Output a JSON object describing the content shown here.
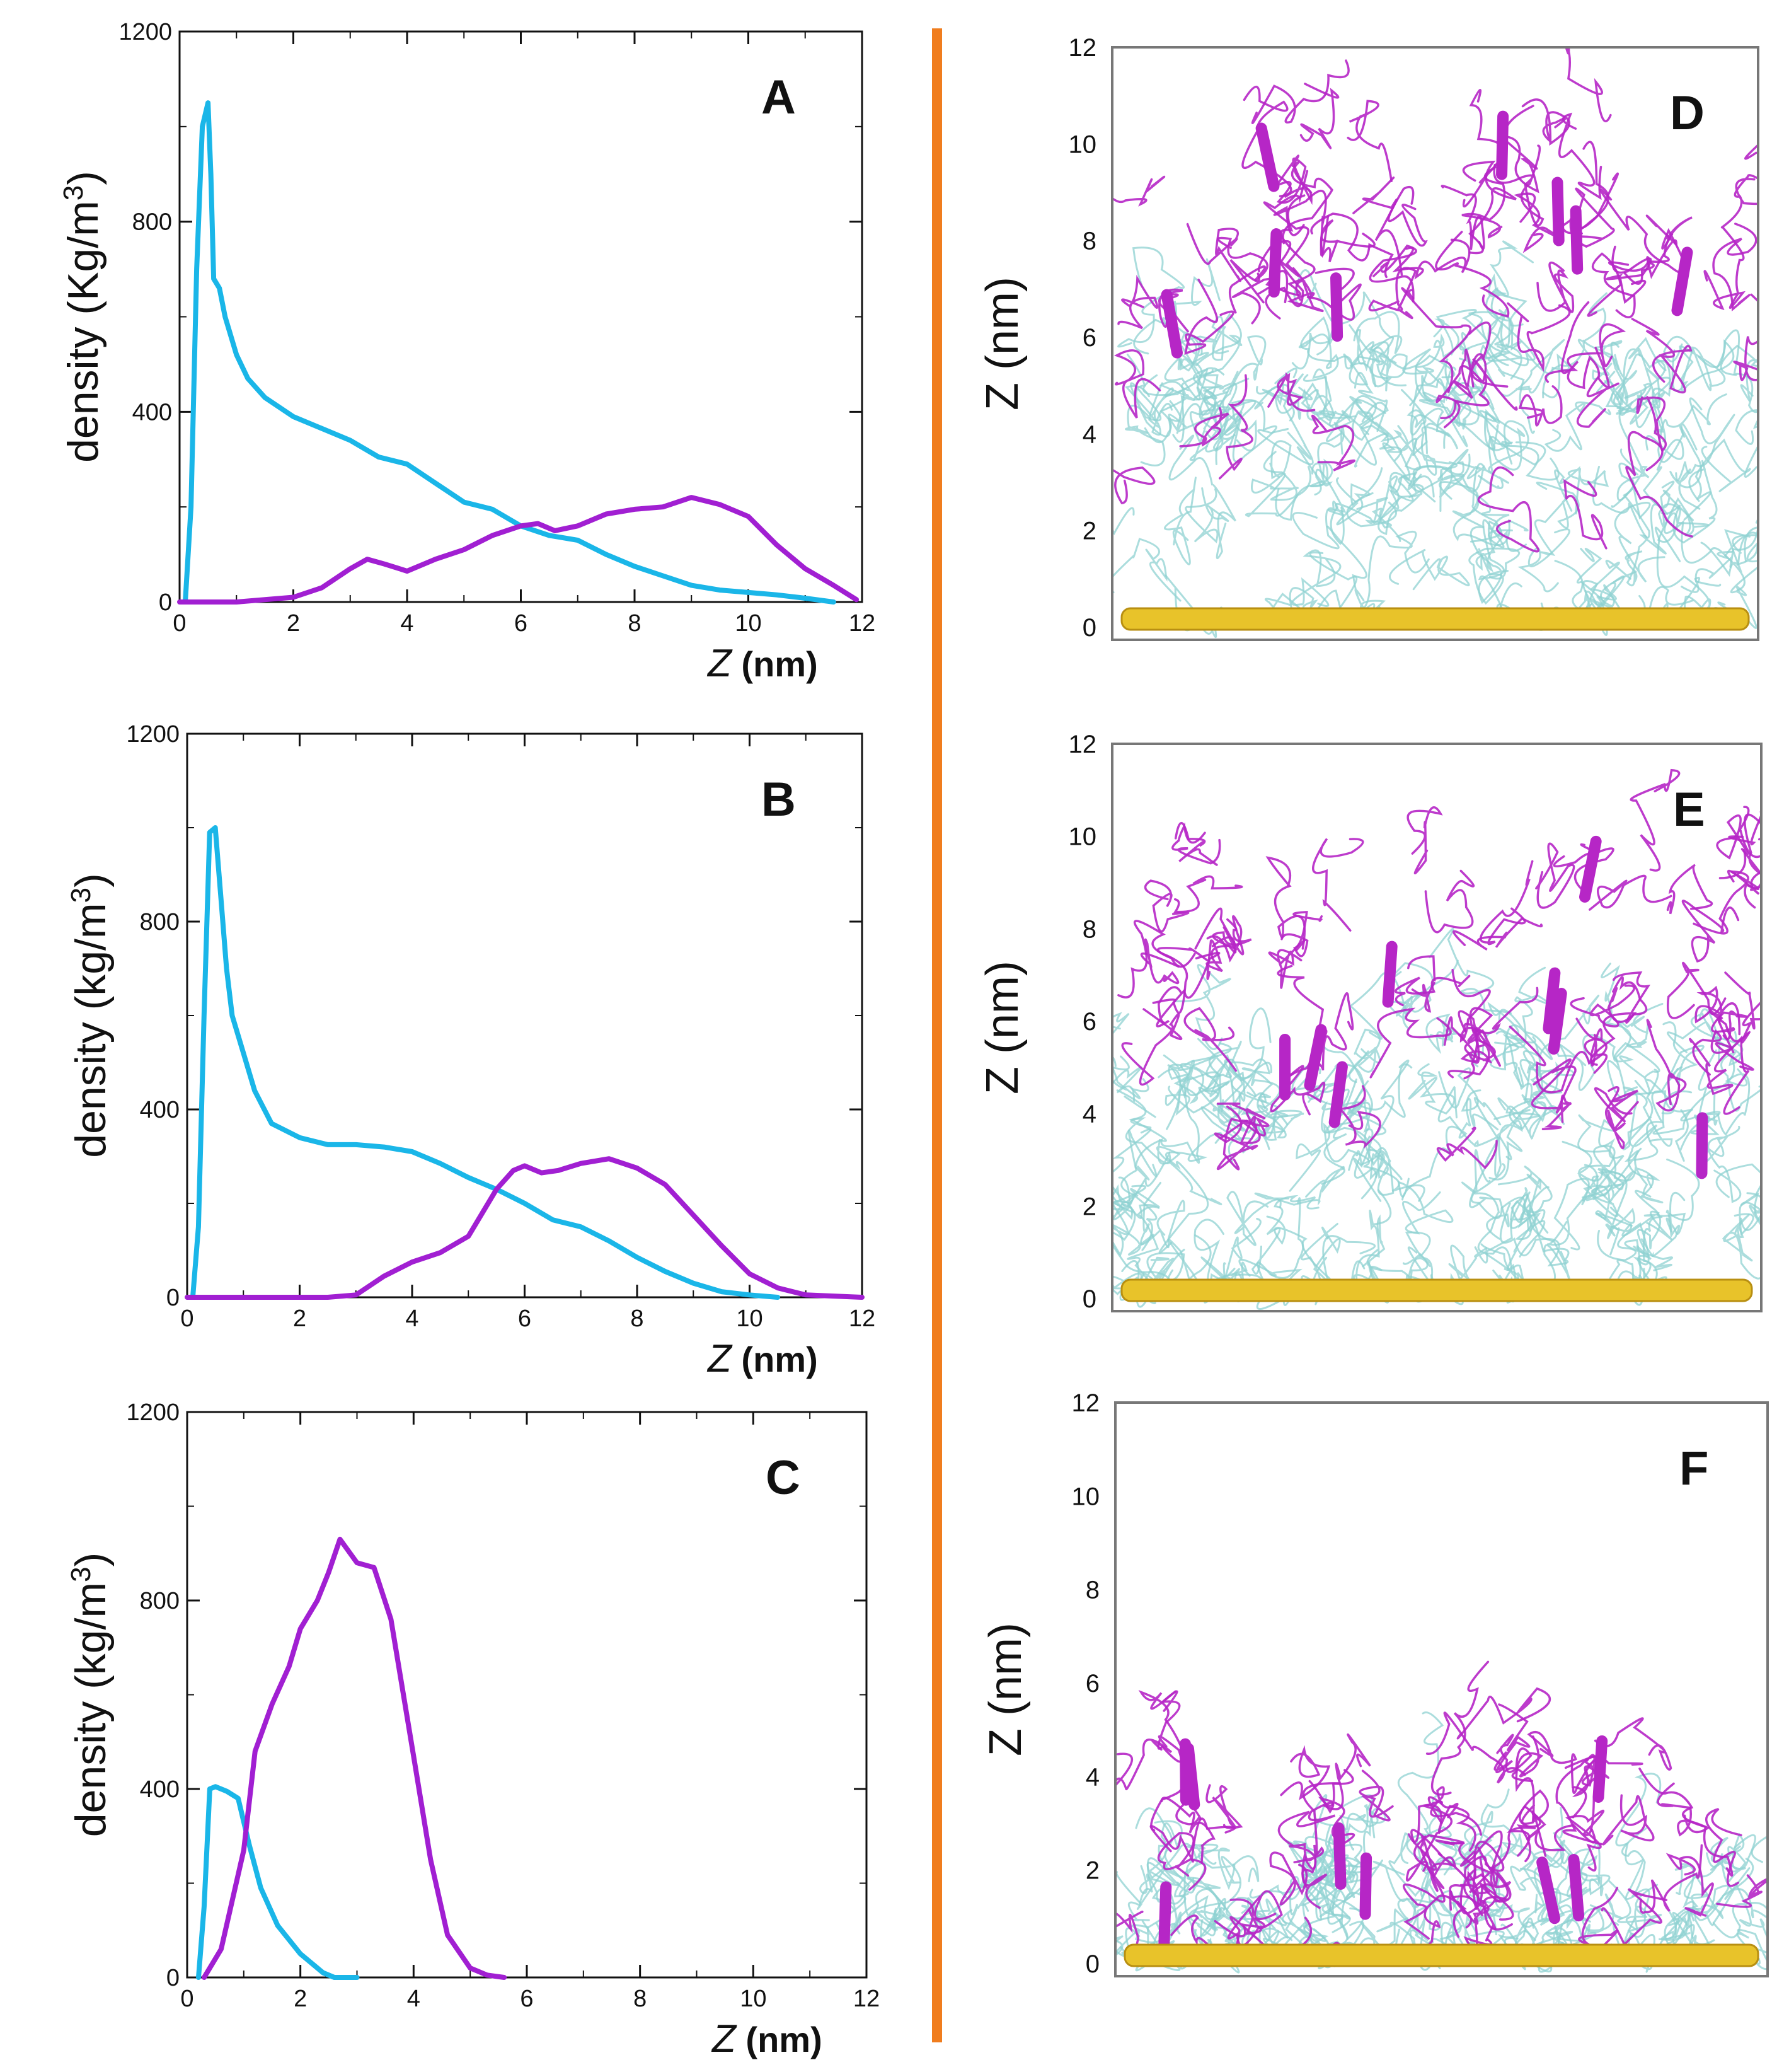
{
  "colors": {
    "cyan": "#1ab6e8",
    "magenta": "#a11fd2",
    "divider": "#f07d1e",
    "strand_cyan": "#8fd1d1",
    "strand_magenta": "#b626c6",
    "surface": "#e8c32a"
  },
  "chart_data": [
    {
      "panel": "A",
      "type": "line",
      "ylabel": "density (Kg/m",
      "ylabel_sup": "3",
      "ylabel_end": ")",
      "xlabel_z": "Z",
      "xlabel_unit": " (nm)",
      "xlim": [
        0,
        12
      ],
      "ylim": [
        0,
        1200
      ],
      "xticks": [
        0,
        2,
        4,
        6,
        8,
        10,
        12
      ],
      "yticks": [
        0,
        400,
        800,
        1200
      ],
      "series": [
        {
          "name": "cyan",
          "color": "#1ab6e8",
          "x": [
            0.1,
            0.2,
            0.3,
            0.4,
            0.5,
            0.55,
            0.6,
            0.7,
            0.8,
            1.0,
            1.2,
            1.5,
            2.0,
            2.5,
            3.0,
            3.5,
            4.0,
            4.5,
            5.0,
            5.5,
            6.0,
            6.5,
            7.0,
            7.5,
            8.0,
            8.5,
            9.0,
            9.5,
            10.0,
            10.5,
            11.0,
            11.5
          ],
          "y": [
            0,
            200,
            700,
            1000,
            1050,
            900,
            680,
            660,
            600,
            520,
            470,
            430,
            390,
            365,
            340,
            305,
            290,
            250,
            210,
            195,
            160,
            140,
            130,
            100,
            75,
            55,
            35,
            25,
            20,
            15,
            8,
            0
          ]
        },
        {
          "name": "magenta",
          "color": "#a11fd2",
          "x": [
            0,
            1.0,
            2.0,
            2.5,
            3.0,
            3.3,
            3.6,
            4.0,
            4.5,
            5.0,
            5.5,
            6.0,
            6.3,
            6.6,
            7.0,
            7.5,
            8.0,
            8.5,
            9.0,
            9.5,
            10.0,
            10.5,
            11.0,
            11.5,
            11.9
          ],
          "y": [
            0,
            0,
            10,
            30,
            70,
            90,
            80,
            65,
            90,
            110,
            140,
            160,
            165,
            150,
            160,
            185,
            195,
            200,
            220,
            205,
            180,
            120,
            70,
            35,
            5
          ]
        }
      ]
    },
    {
      "panel": "B",
      "type": "line",
      "ylabel": "density (kg/m",
      "ylabel_sup": "3",
      "ylabel_end": ")",
      "xlabel_z": "Z",
      "xlabel_unit": " (nm)",
      "xlim": [
        0,
        12
      ],
      "ylim": [
        0,
        1200
      ],
      "xticks": [
        0,
        2,
        4,
        6,
        8,
        10,
        12
      ],
      "yticks": [
        0,
        400,
        800,
        1200
      ],
      "series": [
        {
          "name": "cyan",
          "color": "#1ab6e8",
          "x": [
            0.1,
            0.2,
            0.3,
            0.4,
            0.5,
            0.6,
            0.7,
            0.8,
            1.0,
            1.2,
            1.5,
            2.0,
            2.5,
            3.0,
            3.5,
            4.0,
            4.5,
            5.0,
            5.5,
            6.0,
            6.5,
            7.0,
            7.5,
            8.0,
            8.5,
            9.0,
            9.5,
            10.0,
            10.5
          ],
          "y": [
            0,
            150,
            600,
            990,
            1000,
            850,
            700,
            600,
            520,
            440,
            370,
            340,
            325,
            325,
            320,
            310,
            285,
            255,
            230,
            200,
            165,
            150,
            120,
            85,
            55,
            30,
            12,
            5,
            0
          ]
        },
        {
          "name": "magenta",
          "color": "#a11fd2",
          "x": [
            0,
            2.5,
            3.0,
            3.5,
            4.0,
            4.5,
            5.0,
            5.5,
            5.8,
            6.0,
            6.3,
            6.6,
            7.0,
            7.5,
            8.0,
            8.5,
            9.0,
            9.5,
            10.0,
            10.5,
            11.0,
            12.0
          ],
          "y": [
            0,
            0,
            5,
            45,
            75,
            95,
            130,
            230,
            270,
            280,
            265,
            270,
            285,
            295,
            275,
            240,
            175,
            110,
            50,
            20,
            5,
            0
          ]
        }
      ]
    },
    {
      "panel": "C",
      "type": "line",
      "ylabel": "density (kg/m",
      "ylabel_sup": "3",
      "ylabel_end": ")",
      "xlabel_z": "Z",
      "xlabel_unit": " (nm)",
      "xlim": [
        0,
        12
      ],
      "ylim": [
        0,
        1200
      ],
      "xticks": [
        0,
        2,
        4,
        6,
        8,
        10,
        12
      ],
      "yticks": [
        0,
        400,
        800,
        1200
      ],
      "series": [
        {
          "name": "cyan",
          "color": "#1ab6e8",
          "x": [
            0.2,
            0.3,
            0.4,
            0.5,
            0.7,
            0.9,
            1.1,
            1.3,
            1.6,
            2.0,
            2.4,
            2.6,
            3.0
          ],
          "y": [
            0,
            150,
            400,
            405,
            395,
            380,
            280,
            190,
            110,
            50,
            10,
            0,
            0
          ]
        },
        {
          "name": "magenta",
          "color": "#a11fd2",
          "x": [
            0.3,
            0.6,
            1.0,
            1.2,
            1.5,
            1.8,
            2.0,
            2.3,
            2.5,
            2.7,
            3.0,
            3.3,
            3.6,
            4.0,
            4.3,
            4.6,
            5.0,
            5.3,
            5.6
          ],
          "y": [
            0,
            60,
            270,
            480,
            580,
            660,
            740,
            800,
            860,
            930,
            880,
            870,
            760,
            470,
            250,
            90,
            20,
            5,
            0
          ]
        }
      ]
    }
  ],
  "snapshots": [
    {
      "panel": "D",
      "zlabel": "Z (nm)",
      "yticks": [
        "0",
        "2",
        "4",
        "6",
        "8",
        "10",
        "12"
      ]
    },
    {
      "panel": "E",
      "zlabel": "Z (nm)",
      "yticks": [
        "0",
        "2",
        "4",
        "6",
        "8",
        "10",
        "12"
      ]
    },
    {
      "panel": "F",
      "zlabel": "Z (nm)",
      "yticks": [
        "0",
        "2",
        "4",
        "6",
        "8",
        "10",
        "12"
      ]
    }
  ]
}
